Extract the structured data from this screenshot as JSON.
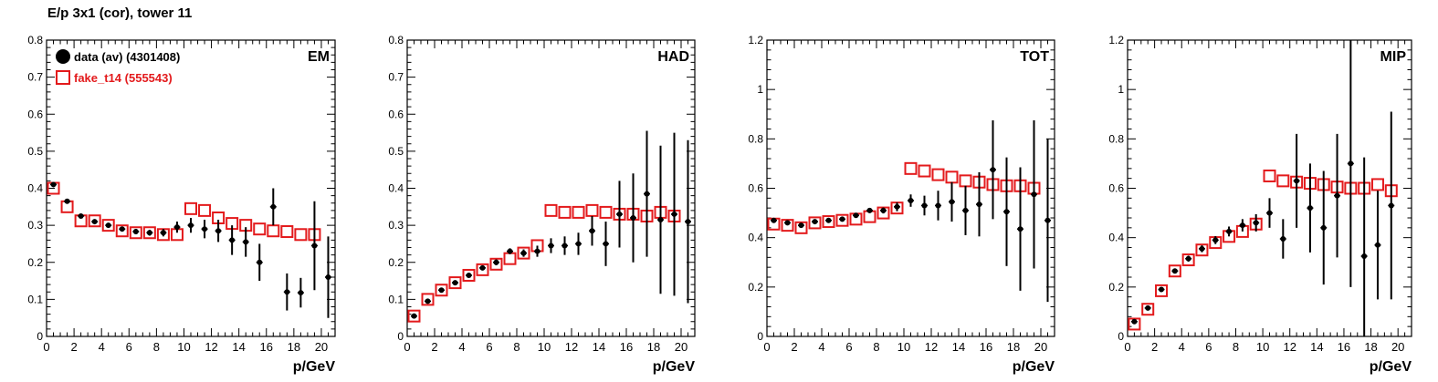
{
  "figure": {
    "title": "E/p 3x1 (cor), tower 11"
  },
  "legend": {
    "data_label": "data (av) (4301408)",
    "fake_label": "fake_t14 (555543)",
    "data_color": "#000000",
    "fake_color": "#e31a1c"
  },
  "chart_data": [
    {
      "type": "scatter",
      "panel_label": "EM",
      "xlabel": "p/GeV",
      "xlim": [
        0,
        21
      ],
      "ylim": [
        0,
        0.8
      ],
      "x_ticks": [
        0,
        2,
        4,
        6,
        8,
        10,
        12,
        14,
        16,
        18,
        20
      ],
      "y_ticks": [
        0,
        0.1,
        0.2,
        0.3,
        0.4,
        0.5,
        0.6,
        0.7,
        0.8
      ],
      "series": [
        {
          "name": "data (av) (4301408)",
          "x": [
            0.5,
            1.5,
            2.5,
            3.5,
            4.5,
            5.5,
            6.5,
            7.5,
            8.5,
            9.5,
            10.5,
            11.5,
            12.5,
            13.5,
            14.5,
            15.5,
            16.5,
            17.5,
            18.5,
            19.5,
            20.5
          ],
          "y": [
            0.41,
            0.365,
            0.325,
            0.31,
            0.3,
            0.29,
            0.283,
            0.28,
            0.28,
            0.295,
            0.3,
            0.29,
            0.285,
            0.26,
            0.255,
            0.2,
            0.35,
            0.12,
            0.118,
            0.245,
            0.16
          ],
          "yerr": [
            0.005,
            0.005,
            0.005,
            0.005,
            0.005,
            0.006,
            0.007,
            0.008,
            0.01,
            0.015,
            0.02,
            0.025,
            0.03,
            0.04,
            0.04,
            0.05,
            0.05,
            0.05,
            0.04,
            0.12,
            0.11
          ]
        },
        {
          "name": "fake_t14 (555543)",
          "x": [
            0.5,
            1.5,
            2.5,
            3.5,
            4.5,
            5.5,
            6.5,
            7.5,
            8.5,
            9.5,
            10.5,
            11.5,
            12.5,
            13.5,
            14.5,
            15.5,
            16.5,
            17.5,
            18.5,
            19.5
          ],
          "y": [
            0.4,
            0.35,
            0.312,
            0.312,
            0.3,
            0.285,
            0.28,
            0.28,
            0.275,
            0.275,
            0.345,
            0.34,
            0.32,
            0.305,
            0.3,
            0.29,
            0.285,
            0.283,
            0.275,
            0.275
          ]
        }
      ]
    },
    {
      "type": "scatter",
      "panel_label": "HAD",
      "xlabel": "p/GeV",
      "xlim": [
        0,
        21
      ],
      "ylim": [
        0,
        0.8
      ],
      "x_ticks": [
        0,
        2,
        4,
        6,
        8,
        10,
        12,
        14,
        16,
        18,
        20
      ],
      "y_ticks": [
        0,
        0.1,
        0.2,
        0.3,
        0.4,
        0.5,
        0.6,
        0.7,
        0.8
      ],
      "series": [
        {
          "name": "data (av) (4301408)",
          "x": [
            0.5,
            1.5,
            2.5,
            3.5,
            4.5,
            5.5,
            6.5,
            7.5,
            8.5,
            9.5,
            10.5,
            11.5,
            12.5,
            13.5,
            14.5,
            15.5,
            16.5,
            17.5,
            18.5,
            19.5,
            20.5
          ],
          "y": [
            0.055,
            0.095,
            0.125,
            0.145,
            0.165,
            0.185,
            0.2,
            0.23,
            0.225,
            0.23,
            0.245,
            0.245,
            0.25,
            0.285,
            0.25,
            0.33,
            0.32,
            0.385,
            0.315,
            0.33,
            0.31
          ],
          "yerr": [
            0.005,
            0.005,
            0.005,
            0.005,
            0.005,
            0.006,
            0.008,
            0.008,
            0.01,
            0.015,
            0.02,
            0.025,
            0.03,
            0.04,
            0.06,
            0.09,
            0.12,
            0.17,
            0.2,
            0.22,
            0.22
          ]
        },
        {
          "name": "fake_t14 (555543)",
          "x": [
            0.5,
            1.5,
            2.5,
            3.5,
            4.5,
            5.5,
            6.5,
            7.5,
            8.5,
            9.5,
            10.5,
            11.5,
            12.5,
            13.5,
            14.5,
            15.5,
            16.5,
            17.5,
            18.5,
            19.5
          ],
          "y": [
            0.055,
            0.1,
            0.125,
            0.145,
            0.165,
            0.18,
            0.195,
            0.21,
            0.225,
            0.245,
            0.34,
            0.335,
            0.335,
            0.34,
            0.335,
            0.33,
            0.33,
            0.325,
            0.335,
            0.325
          ]
        }
      ]
    },
    {
      "type": "scatter",
      "panel_label": "TOT",
      "xlabel": "p/GeV",
      "xlim": [
        0,
        21
      ],
      "ylim": [
        0,
        1.2
      ],
      "x_ticks": [
        0,
        2,
        4,
        6,
        8,
        10,
        12,
        14,
        16,
        18,
        20
      ],
      "y_ticks": [
        0,
        0.2,
        0.4,
        0.6,
        0.8,
        1,
        1.2
      ],
      "series": [
        {
          "name": "data (av) (4301408)",
          "x": [
            0.5,
            1.5,
            2.5,
            3.5,
            4.5,
            5.5,
            6.5,
            7.5,
            8.5,
            9.5,
            10.5,
            11.5,
            12.5,
            13.5,
            14.5,
            15.5,
            16.5,
            17.5,
            18.5,
            19.5,
            20.5
          ],
          "y": [
            0.47,
            0.46,
            0.45,
            0.465,
            0.47,
            0.475,
            0.49,
            0.51,
            0.51,
            0.525,
            0.55,
            0.53,
            0.53,
            0.545,
            0.51,
            0.535,
            0.675,
            0.505,
            0.435,
            0.575,
            0.47
          ],
          "yerr": [
            0.005,
            0.005,
            0.005,
            0.005,
            0.006,
            0.006,
            0.008,
            0.01,
            0.012,
            0.018,
            0.025,
            0.04,
            0.06,
            0.08,
            0.1,
            0.13,
            0.2,
            0.22,
            0.25,
            0.3,
            0.33
          ]
        },
        {
          "name": "fake_t14 (555543)",
          "x": [
            0.5,
            1.5,
            2.5,
            3.5,
            4.5,
            5.5,
            6.5,
            7.5,
            8.5,
            9.5,
            10.5,
            11.5,
            12.5,
            13.5,
            14.5,
            15.5,
            16.5,
            17.5,
            18.5,
            19.5
          ],
          "y": [
            0.455,
            0.45,
            0.44,
            0.46,
            0.465,
            0.47,
            0.475,
            0.485,
            0.5,
            0.52,
            0.68,
            0.67,
            0.655,
            0.645,
            0.63,
            0.625,
            0.615,
            0.61,
            0.61,
            0.6
          ]
        }
      ]
    },
    {
      "type": "scatter",
      "panel_label": "MIP",
      "xlabel": "p/GeV",
      "xlim": [
        0,
        21
      ],
      "ylim": [
        0,
        1.2
      ],
      "x_ticks": [
        0,
        2,
        4,
        6,
        8,
        10,
        12,
        14,
        16,
        18,
        20
      ],
      "y_ticks": [
        0,
        0.2,
        0.4,
        0.6,
        0.8,
        1,
        1.2
      ],
      "series": [
        {
          "name": "data (av) (4301408)",
          "x": [
            0.5,
            1.5,
            2.5,
            3.5,
            4.5,
            5.5,
            6.5,
            7.5,
            8.5,
            9.5,
            10.5,
            11.5,
            12.5,
            13.5,
            14.5,
            15.5,
            16.5,
            17.5,
            18.5,
            19.5
          ],
          "y": [
            0.06,
            0.115,
            0.19,
            0.265,
            0.315,
            0.355,
            0.39,
            0.425,
            0.45,
            0.46,
            0.5,
            0.395,
            0.63,
            0.52,
            0.44,
            0.57,
            0.7,
            0.325,
            0.37,
            0.53
          ],
          "yerr": [
            0.005,
            0.006,
            0.008,
            0.01,
            0.012,
            0.014,
            0.016,
            0.02,
            0.025,
            0.035,
            0.06,
            0.08,
            0.19,
            0.18,
            0.23,
            0.25,
            0.5,
            0.4,
            0.22,
            0.38
          ]
        },
        {
          "name": "fake_t14 (555543)",
          "x": [
            0.5,
            1.5,
            2.5,
            3.5,
            4.5,
            5.5,
            6.5,
            7.5,
            8.5,
            9.5,
            10.5,
            11.5,
            12.5,
            13.5,
            14.5,
            15.5,
            16.5,
            17.5,
            18.5,
            19.5
          ],
          "y": [
            0.05,
            0.11,
            0.185,
            0.265,
            0.31,
            0.35,
            0.38,
            0.405,
            0.425,
            0.455,
            0.65,
            0.63,
            0.625,
            0.62,
            0.615,
            0.605,
            0.6,
            0.6,
            0.615,
            0.59
          ]
        }
      ]
    }
  ]
}
